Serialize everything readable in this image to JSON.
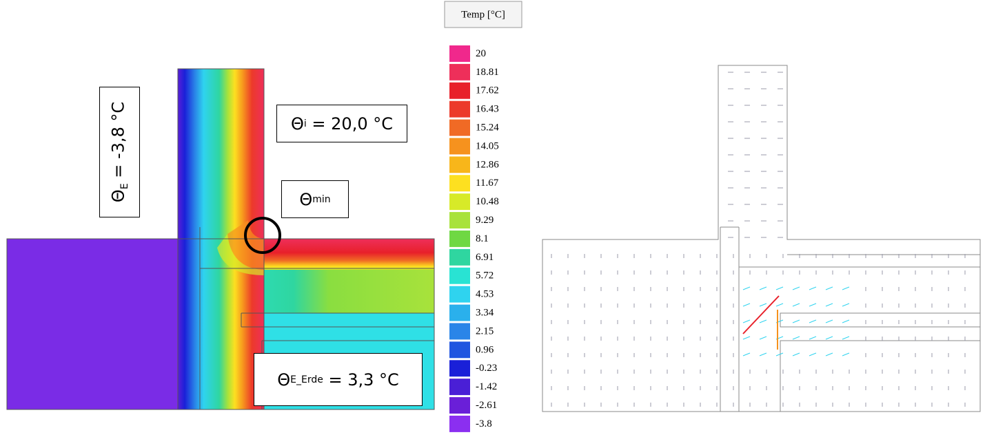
{
  "annotations": {
    "theta_e": {
      "symbol": "Θ",
      "sub": "E",
      "text": " = -3,8 °C"
    },
    "theta_i": {
      "symbol": "Θ",
      "sub": "i",
      "text": " = 20,0 °C"
    },
    "theta_min": {
      "symbol": "Θ",
      "sub": "min"
    },
    "theta_e_erde": {
      "symbol": "Θ",
      "sub": "E_Erde",
      "text": " = 3,3 °C"
    }
  },
  "legend": {
    "title": "Temp [°C]",
    "entries": [
      {
        "label": "20",
        "color": "#f0288c"
      },
      {
        "label": "18.81",
        "color": "#ee2f5a"
      },
      {
        "label": "17.62",
        "color": "#e8202a"
      },
      {
        "label": "16.43",
        "color": "#ec3a2a"
      },
      {
        "label": "15.24",
        "color": "#f06a25"
      },
      {
        "label": "14.05",
        "color": "#f6921e"
      },
      {
        "label": "12.86",
        "color": "#f8b61a"
      },
      {
        "label": "11.67",
        "color": "#fde020"
      },
      {
        "label": "10.48",
        "color": "#d7ea28"
      },
      {
        "label": "9.29",
        "color": "#a8e23b"
      },
      {
        "label": "8.1",
        "color": "#6fd843"
      },
      {
        "label": "6.91",
        "color": "#2fd6a0"
      },
      {
        "label": "5.72",
        "color": "#29e3d3"
      },
      {
        "label": "4.53",
        "color": "#2fd3ef"
      },
      {
        "label": "3.34",
        "color": "#2ab0ec"
      },
      {
        "label": "2.15",
        "color": "#2a85e8"
      },
      {
        "label": "0.96",
        "color": "#1f55e0"
      },
      {
        "label": "-0.23",
        "color": "#1a20d8"
      },
      {
        "label": "-1.42",
        "color": "#4a1fd6"
      },
      {
        "label": "-2.61",
        "color": "#6a1fd8"
      },
      {
        "label": "-3.8",
        "color": "#8b2ff0"
      }
    ]
  }
}
